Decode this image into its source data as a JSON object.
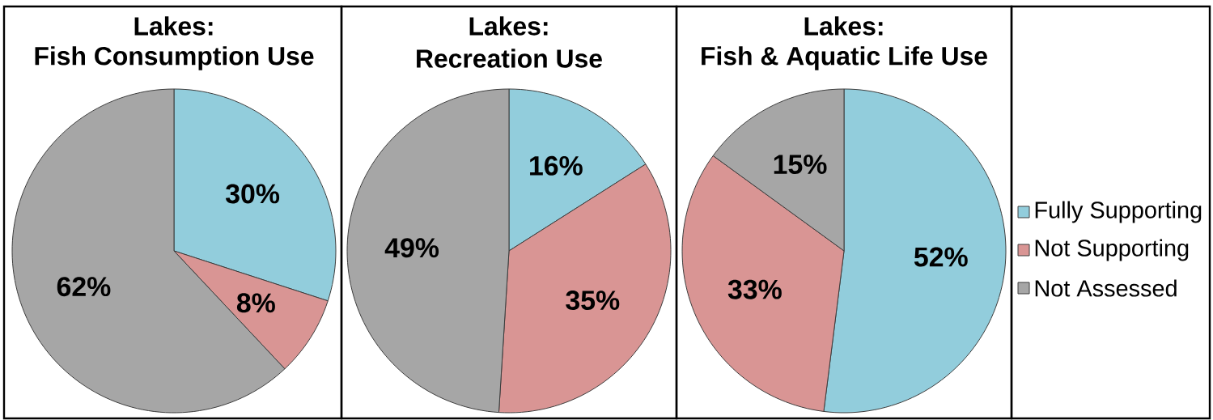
{
  "chart_data": [
    {
      "type": "pie",
      "title": "Lakes:",
      "subtitle": "Fish Consumption Use",
      "categories": [
        null,
        null,
        null
      ],
      "values": [
        30,
        8,
        62
      ],
      "value_labels": [
        "30%",
        "8%",
        "62%"
      ],
      "colors": [
        "#92cddc",
        "#d99594",
        "#a6a6a6"
      ]
    },
    {
      "type": "pie",
      "title": "Lakes:",
      "subtitle": "Recreation Use",
      "categories": [
        null,
        null,
        null
      ],
      "values": [
        16,
        35,
        49
      ],
      "value_labels": [
        "16%",
        "35%",
        "49%"
      ],
      "colors": [
        "#92cddc",
        "#d99594",
        "#a6a6a6"
      ]
    },
    {
      "type": "pie",
      "title": "Lakes:",
      "subtitle": "Fish & Aquatic Life Use",
      "categories": [
        "Fully Supporting",
        "Not Supporting",
        "Not Assessed"
      ],
      "values": [
        52,
        33,
        15
      ],
      "value_labels": [
        "52%",
        "33%",
        "15%"
      ],
      "colors": [
        "#92cddc",
        "#d99594",
        "#a6a6a6"
      ],
      "legend": "right"
    }
  ]
}
